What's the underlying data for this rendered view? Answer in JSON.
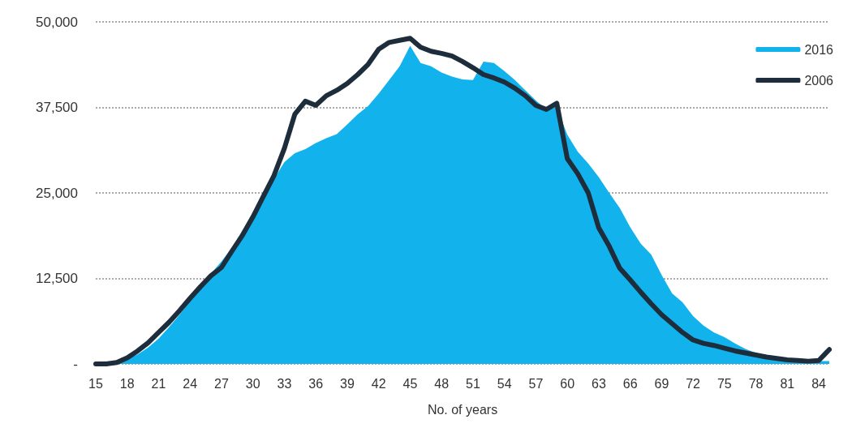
{
  "chart_data": {
    "type": "area",
    "xlabel": "No. of years",
    "x": [
      15,
      16,
      17,
      18,
      19,
      20,
      21,
      22,
      23,
      24,
      25,
      26,
      27,
      28,
      29,
      30,
      31,
      32,
      33,
      34,
      35,
      36,
      37,
      38,
      39,
      40,
      41,
      42,
      43,
      44,
      45,
      46,
      47,
      48,
      49,
      50,
      51,
      52,
      53,
      54,
      55,
      56,
      57,
      58,
      59,
      60,
      61,
      62,
      63,
      64,
      65,
      66,
      67,
      68,
      69,
      70,
      71,
      72,
      73,
      74,
      75,
      76,
      77,
      78,
      79,
      80,
      81,
      82,
      83,
      84,
      85
    ],
    "series": [
      {
        "name": "2016",
        "color": "#12b2ec",
        "values": [
          0,
          100,
          300,
          700,
          1400,
          2400,
          3700,
          5400,
          7200,
          9200,
          11300,
          13200,
          15000,
          17000,
          19500,
          22000,
          24500,
          27000,
          29500,
          30800,
          31400,
          32300,
          33000,
          33600,
          35000,
          36500,
          37700,
          39500,
          41500,
          43500,
          46500,
          44000,
          43500,
          42600,
          42000,
          41600,
          41500,
          44200,
          44000,
          42800,
          41500,
          40000,
          38500,
          37200,
          37500,
          33500,
          31000,
          29300,
          27300,
          25000,
          22800,
          20000,
          17600,
          16000,
          13000,
          10300,
          9000,
          7000,
          5600,
          4600,
          3900,
          3000,
          2200,
          1600,
          1200,
          1000,
          700,
          500,
          400,
          400,
          400
        ]
      },
      {
        "name": "2006",
        "color": "#1e2d3b",
        "type": "line",
        "values": [
          0,
          0,
          200,
          900,
          1900,
          3100,
          4600,
          6100,
          7800,
          9600,
          11300,
          12900,
          14100,
          16500,
          18800,
          21500,
          24500,
          27500,
          31500,
          36500,
          38400,
          37800,
          39200,
          40000,
          41000,
          42300,
          43800,
          46000,
          47000,
          47300,
          47600,
          46300,
          45700,
          45400,
          45000,
          44200,
          43300,
          42300,
          41800,
          41200,
          40300,
          39200,
          37800,
          37200,
          38100,
          30000,
          27800,
          25000,
          19900,
          17200,
          14000,
          12300,
          10500,
          8800,
          7200,
          5900,
          4600,
          3500,
          3000,
          2700,
          2300,
          1900,
          1600,
          1300,
          1000,
          800,
          600,
          500,
          400,
          500,
          2100
        ]
      }
    ],
    "xlim": [
      15,
      85
    ],
    "xticks": [
      15,
      18,
      21,
      24,
      27,
      30,
      33,
      36,
      39,
      42,
      45,
      48,
      51,
      54,
      57,
      60,
      63,
      66,
      69,
      72,
      75,
      78,
      81,
      84
    ],
    "ylim": [
      0,
      50000
    ],
    "yticks": [
      {
        "value": 0,
        "label": "-"
      },
      {
        "value": 12500,
        "label": "12,500"
      },
      {
        "value": 25000,
        "label": "25,000"
      },
      {
        "value": 37500,
        "label": "37,500"
      },
      {
        "value": 50000,
        "label": "50,000"
      }
    ],
    "grid": "y",
    "legend": "top right",
    "marker": "none",
    "line_style": "solid"
  }
}
